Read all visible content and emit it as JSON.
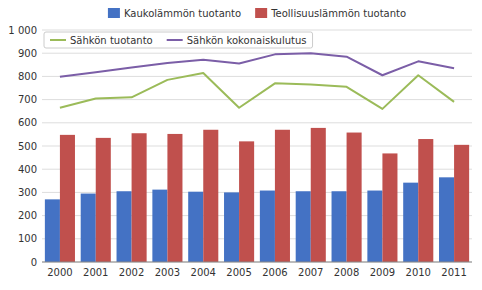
{
  "chart_data": {
    "type": "bar",
    "categories": [
      "2000",
      "2001",
      "2002",
      "2003",
      "2004",
      "2005",
      "2006",
      "2007",
      "2008",
      "2009",
      "2010",
      "2011"
    ],
    "series": [
      {
        "name": "Kaukolämmön tuotanto",
        "color": "#4472C4",
        "values": [
          270,
          295,
          305,
          312,
          303,
          300,
          308,
          305,
          305,
          308,
          342,
          365
        ]
      },
      {
        "name": "Teollisuuslämmön tuotanto",
        "color": "#C0504D",
        "values": [
          548,
          535,
          555,
          552,
          570,
          520,
          570,
          578,
          558,
          468,
          530,
          505
        ]
      },
      {
        "name": "Sähkön tuotanto",
        "type": "line",
        "color": "#9BBB59",
        "values": [
          665,
          705,
          710,
          785,
          815,
          665,
          770,
          765,
          755,
          660,
          805,
          690
        ]
      },
      {
        "name": "Sähkön kokonaiskulutus",
        "type": "line",
        "color": "#7B5EA7",
        "values": [
          798,
          818,
          838,
          858,
          872,
          856,
          895,
          900,
          885,
          805,
          865,
          835
        ]
      }
    ],
    "ylim": [
      0,
      1000
    ],
    "yticks": [
      0,
      100,
      200,
      300,
      400,
      500,
      600,
      700,
      800,
      900,
      {
        "value": 1000,
        "label": "1 000"
      }
    ],
    "grid": true
  }
}
